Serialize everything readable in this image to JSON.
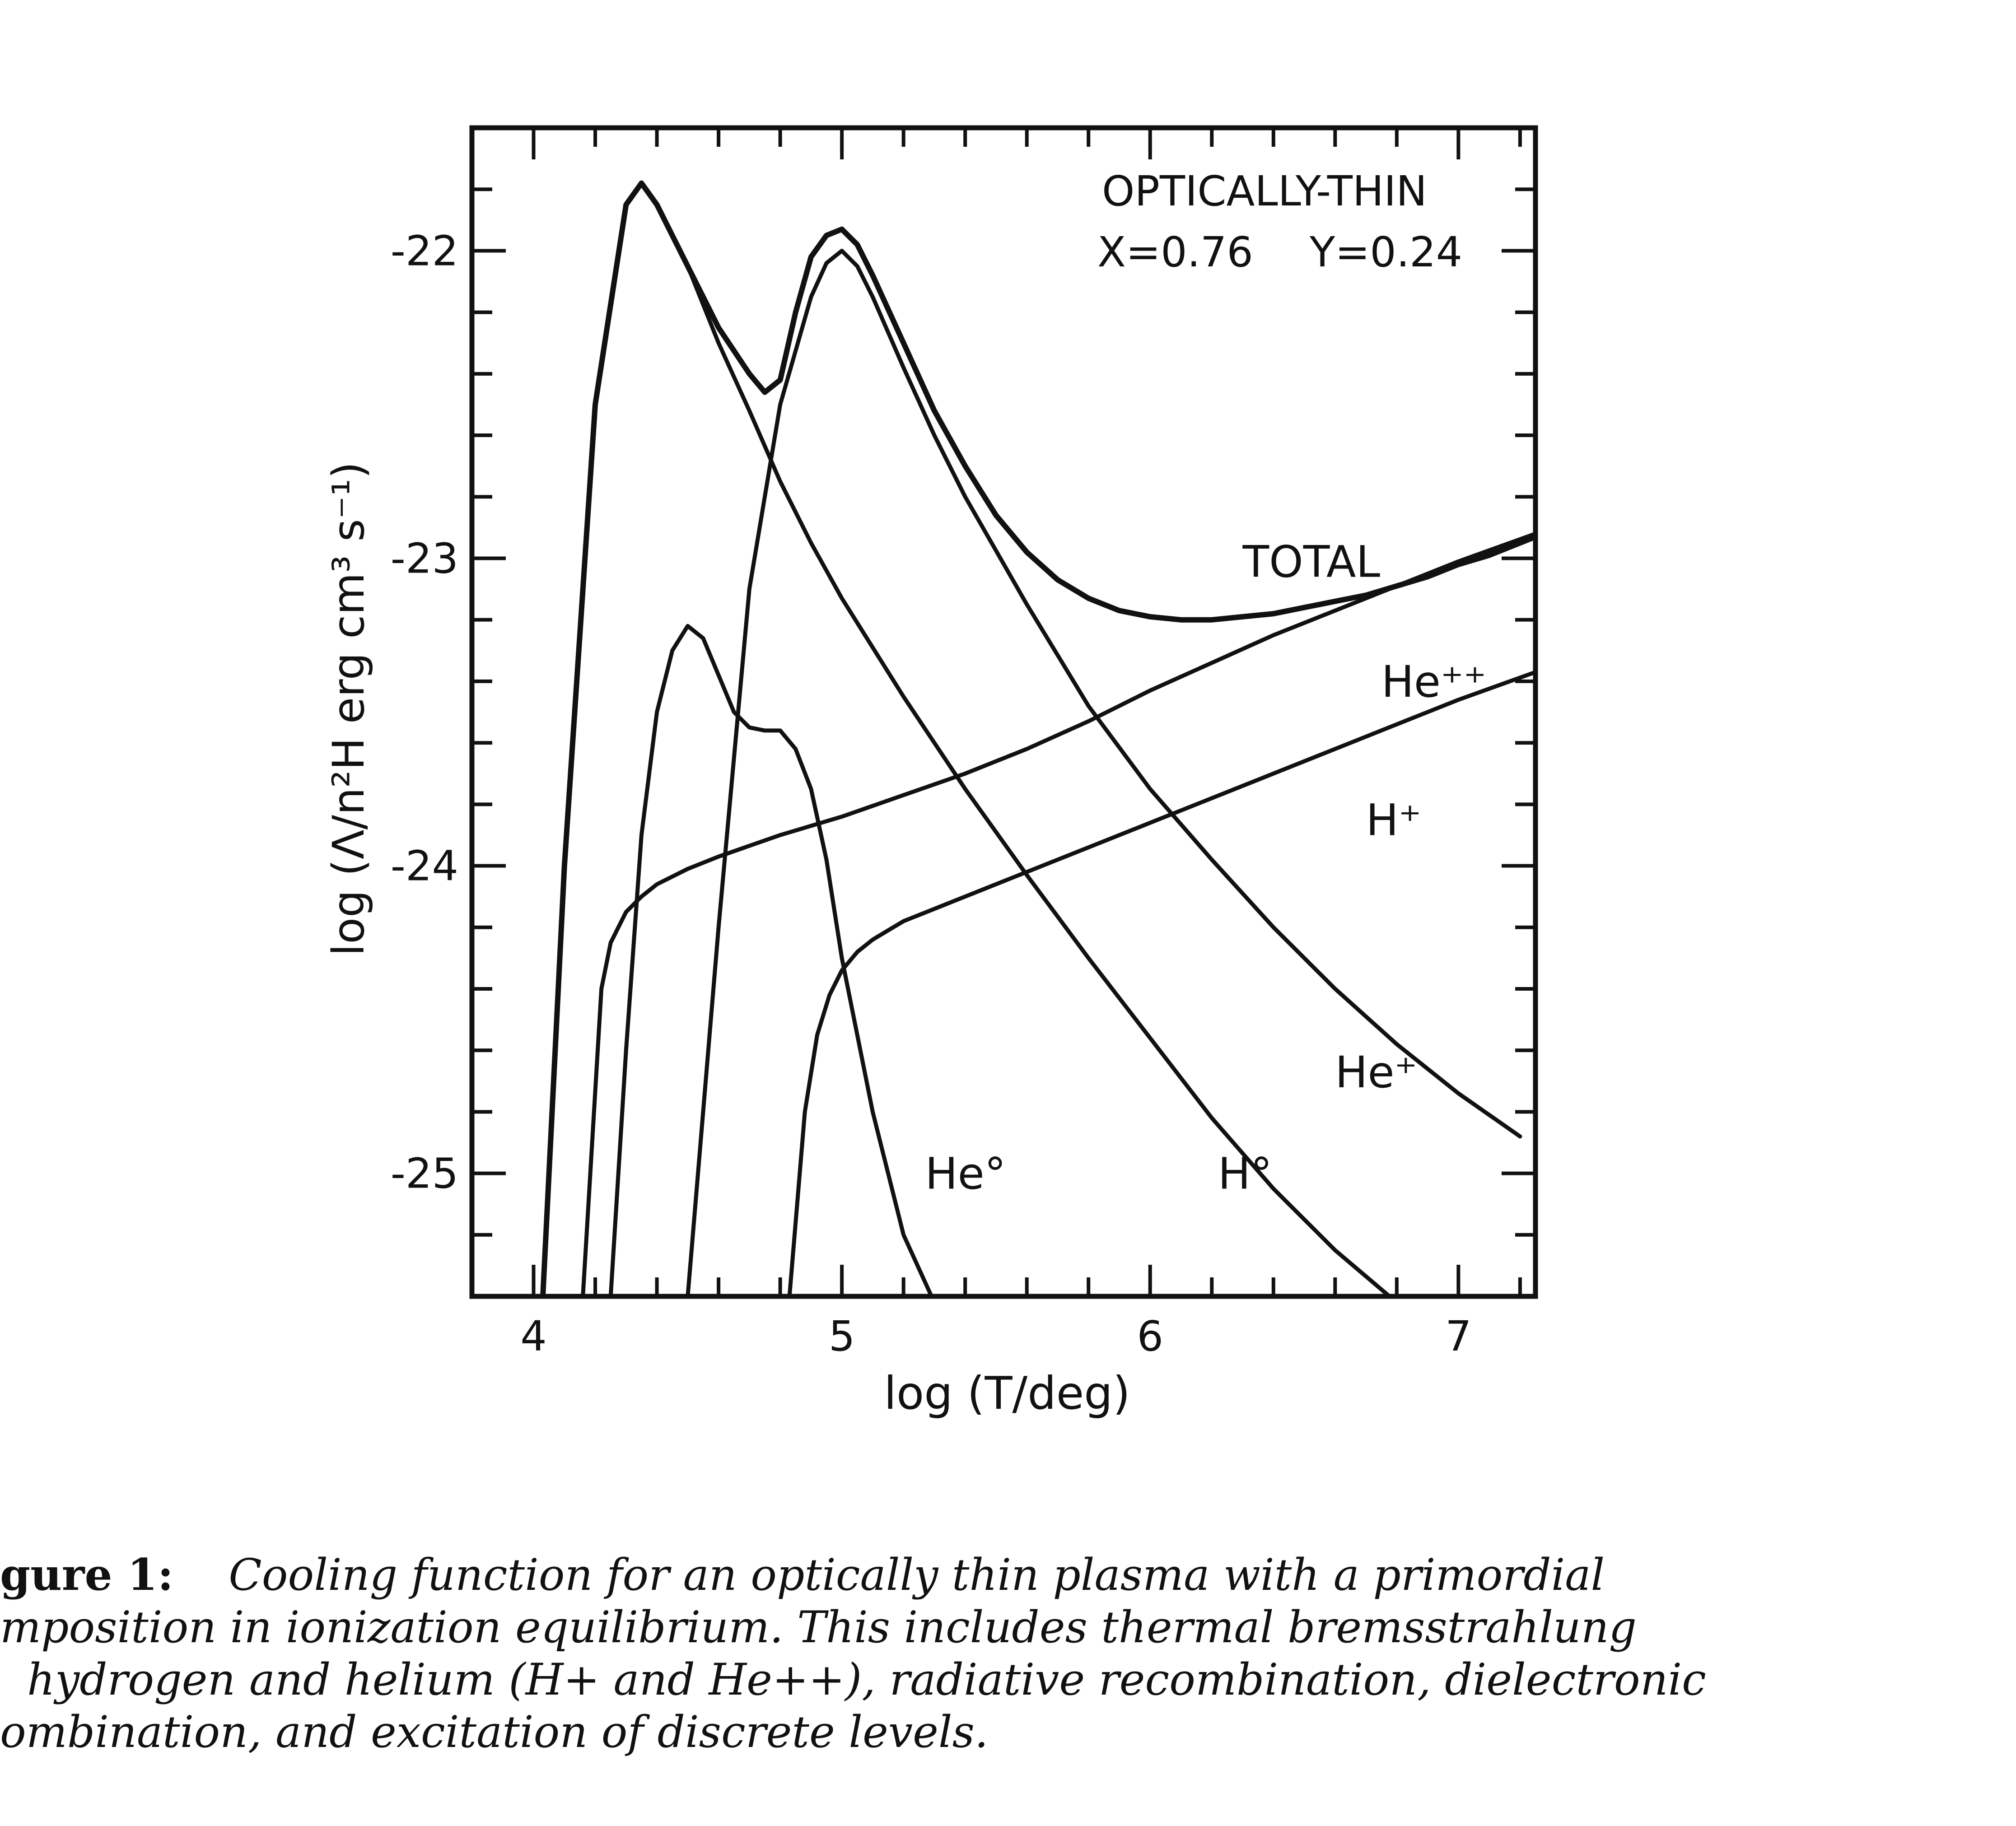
{
  "chart_data": {
    "type": "line",
    "annotation_title": "OPTICALLY-THIN",
    "annotation_x": "X=0.76",
    "annotation_y": "Y=0.24",
    "xlabel": "log (T/deg)",
    "ylabel": "log (Λ/n²H erg cm³ s⁻¹)",
    "xlim": [
      3.8,
      7.25
    ],
    "ylim": [
      -25.4,
      -21.6
    ],
    "xticks": [
      4,
      5,
      6,
      7
    ],
    "xtick_labels": [
      "4",
      "5",
      "6",
      "7"
    ],
    "yticks": [
      -22,
      -23,
      -24,
      -25
    ],
    "ytick_labels": [
      "-22",
      "-23",
      "-24",
      "-25"
    ],
    "series": [
      {
        "name": "TOTAL",
        "label": "TOTAL",
        "x": [
          4.03,
          4.1,
          4.2,
          4.3,
          4.35,
          4.4,
          4.5,
          4.6,
          4.7,
          4.75,
          4.8,
          4.85,
          4.9,
          4.95,
          5.0,
          5.05,
          5.1,
          5.2,
          5.3,
          5.4,
          5.5,
          5.6,
          5.7,
          5.8,
          5.9,
          6.0,
          6.1,
          6.2,
          6.3,
          6.4,
          6.5,
          6.6,
          6.7,
          6.8,
          6.9,
          7.0,
          7.1,
          7.2,
          7.25
        ],
        "y": [
          -25.4,
          -24.0,
          -22.5,
          -21.85,
          -21.78,
          -21.85,
          -22.05,
          -22.25,
          -22.4,
          -22.46,
          -22.42,
          -22.2,
          -22.02,
          -21.95,
          -21.93,
          -21.98,
          -22.08,
          -22.3,
          -22.52,
          -22.7,
          -22.86,
          -22.98,
          -23.07,
          -23.13,
          -23.17,
          -23.19,
          -23.2,
          -23.2,
          -23.19,
          -23.18,
          -23.16,
          -23.14,
          -23.12,
          -23.09,
          -23.06,
          -23.02,
          -22.99,
          -22.95,
          -22.93
        ]
      },
      {
        "name": "H0",
        "label": "H°",
        "x": [
          4.03,
          4.1,
          4.2,
          4.3,
          4.35,
          4.4,
          4.5,
          4.6,
          4.7,
          4.8,
          4.9,
          5.0,
          5.2,
          5.4,
          5.6,
          5.8,
          6.0,
          6.2,
          6.4,
          6.6,
          6.8
        ],
        "y": [
          -25.4,
          -24.0,
          -22.5,
          -21.85,
          -21.78,
          -21.85,
          -22.05,
          -22.3,
          -22.52,
          -22.75,
          -22.95,
          -23.13,
          -23.45,
          -23.75,
          -24.03,
          -24.3,
          -24.56,
          -24.82,
          -25.05,
          -25.25,
          -25.42
        ]
      },
      {
        "name": "He+",
        "label": "He⁺",
        "x": [
          4.5,
          4.6,
          4.7,
          4.8,
          4.9,
          4.95,
          5.0,
          5.05,
          5.1,
          5.2,
          5.3,
          5.4,
          5.6,
          5.8,
          6.0,
          6.2,
          6.4,
          6.6,
          6.8,
          7.0,
          7.2
        ],
        "y": [
          -25.4,
          -24.2,
          -23.1,
          -22.5,
          -22.15,
          -22.04,
          -22.0,
          -22.05,
          -22.15,
          -22.38,
          -22.6,
          -22.8,
          -23.15,
          -23.48,
          -23.75,
          -23.98,
          -24.2,
          -24.4,
          -24.58,
          -24.74,
          -24.88
        ]
      },
      {
        "name": "He0",
        "label": "He°",
        "x": [
          4.25,
          4.3,
          4.35,
          4.4,
          4.45,
          4.5,
          4.55,
          4.6,
          4.65,
          4.7,
          4.75,
          4.8,
          4.85,
          4.9,
          4.95,
          5.0,
          5.1,
          5.2,
          5.3
        ],
        "y": [
          -25.4,
          -24.6,
          -23.9,
          -23.5,
          -23.3,
          -23.22,
          -23.26,
          -23.38,
          -23.5,
          -23.55,
          -23.56,
          -23.56,
          -23.62,
          -23.75,
          -23.98,
          -24.3,
          -24.8,
          -25.2,
          -25.42
        ]
      },
      {
        "name": "He++",
        "label": "He⁺⁺",
        "x": [
          4.16,
          4.22,
          4.25,
          4.3,
          4.35,
          4.4,
          4.5,
          4.6,
          4.8,
          5.0,
          5.2,
          5.4,
          5.6,
          5.8,
          6.0,
          6.2,
          6.4,
          6.6,
          6.8,
          7.0,
          7.25
        ],
        "y": [
          -25.4,
          -24.4,
          -24.25,
          -24.15,
          -24.1,
          -24.06,
          -24.01,
          -23.97,
          -23.9,
          -23.84,
          -23.77,
          -23.7,
          -23.62,
          -23.53,
          -23.43,
          -23.34,
          -23.25,
          -23.17,
          -23.09,
          -23.01,
          -22.92
        ]
      },
      {
        "name": "H+",
        "label": "H⁺",
        "x": [
          4.83,
          4.88,
          4.92,
          4.96,
          5.0,
          5.05,
          5.1,
          5.15,
          5.2,
          5.4,
          5.6,
          5.8,
          6.0,
          6.2,
          6.4,
          6.6,
          6.8,
          7.0,
          7.25
        ],
        "y": [
          -25.4,
          -24.8,
          -24.55,
          -24.42,
          -24.34,
          -24.28,
          -24.24,
          -24.21,
          -24.18,
          -24.1,
          -24.02,
          -23.94,
          -23.86,
          -23.78,
          -23.7,
          -23.62,
          -23.54,
          -23.46,
          -23.37
        ]
      }
    ]
  },
  "caption": {
    "label": "gure 1:",
    "line1": "Cooling function for an optically thin plasma with a primordial",
    "line2": "mposition in ionization equilibrium.  This includes thermal bremsstrahlung",
    "line3": "hydrogen and helium (H+ and He++), radiative recombination, dielectronic",
    "line4": "ombination, and excitation of discrete levels."
  }
}
